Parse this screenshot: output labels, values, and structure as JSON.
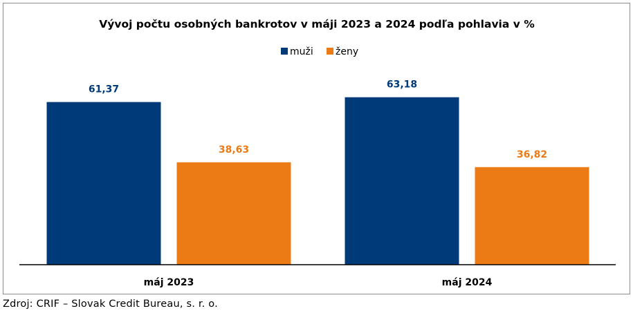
{
  "chart_data": {
    "type": "bar",
    "title": "Vývoj počtu osobných bankrotov v máji 2023 a 2024 podľa pohlavia v %",
    "categories": [
      "máj 2023",
      "máj 2024"
    ],
    "series": [
      {
        "name": "muži",
        "color": "#003a78",
        "values": [
          61.37,
          63.18
        ],
        "labels": [
          "61,37",
          "63,18"
        ]
      },
      {
        "name": "ženy",
        "color": "#ec7b15",
        "values": [
          38.63,
          36.82
        ],
        "labels": [
          "38,63",
          "36,82"
        ]
      }
    ],
    "ylim": [
      0,
      100
    ],
    "grid": false,
    "legend": "top-center",
    "xlabel": "",
    "ylabel": ""
  },
  "source_note": "Zdroj: CRIF – Slovak Credit Bureau, s. r. o."
}
